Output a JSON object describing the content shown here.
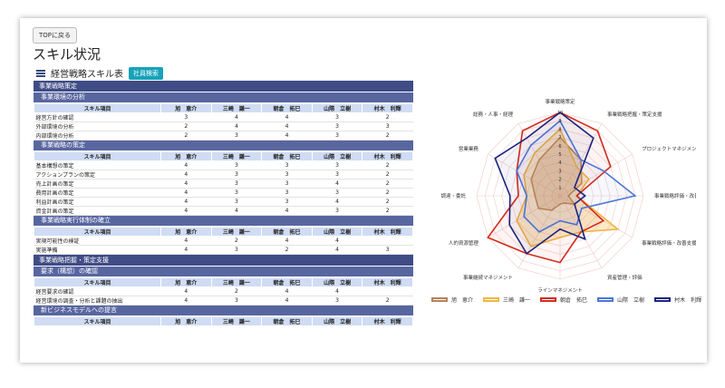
{
  "top_button": "TOPに戻る",
  "page_title": "スキル状況",
  "subtitle": "経営戦略スキル表",
  "search_badge": "社員検索",
  "members": [
    "旭　恵介",
    "三崎　謙一",
    "朝倉　拓巳",
    "山際　立樹",
    "村木　利輝"
  ],
  "skill_header": "スキル項目",
  "sections": [
    {
      "title": "事業戦略策定",
      "groups": [
        {
          "title": "事業環境の分析",
          "rows": [
            {
              "name": "経営方針の確認",
              "values": [
                "3",
                "4",
                "4",
                "3",
                "2"
              ]
            },
            {
              "name": "外部環境の分析",
              "values": [
                "2",
                "4",
                "4",
                "3",
                "3"
              ]
            },
            {
              "name": "内部環境の分析",
              "values": [
                "2",
                "3",
                "4",
                "3",
                "2"
              ]
            }
          ]
        },
        {
          "title": "事業戦略の策定",
          "rows": [
            {
              "name": "基本構想の策定",
              "values": [
                "4",
                "3",
                "3",
                "3",
                "2"
              ]
            },
            {
              "name": "アクションプランの策定",
              "values": [
                "4",
                "3",
                "3",
                "3",
                "2"
              ]
            },
            {
              "name": "売上計画の策定",
              "values": [
                "4",
                "3",
                "3",
                "4",
                "2"
              ]
            },
            {
              "name": "費用計画の策定",
              "values": [
                "4",
                "3",
                "3",
                "3",
                "2"
              ]
            },
            {
              "name": "利益計画の策定",
              "values": [
                "4",
                "3",
                "3",
                "4",
                "2"
              ]
            },
            {
              "name": "資金計画の策定",
              "values": [
                "4",
                "4",
                "4",
                "3",
                "2"
              ]
            }
          ]
        },
        {
          "title": "事業戦略実行体制の確立",
          "rows": [
            {
              "name": "実現可能性の検証",
              "values": [
                "4",
                "2",
                "4",
                "4",
                ""
              ]
            },
            {
              "name": "実施準備",
              "values": [
                "4",
                "3",
                "2",
                "4",
                "3"
              ]
            }
          ]
        }
      ]
    },
    {
      "title": "事業戦略把握・策定支援",
      "groups": [
        {
          "title": "要求（構想）の確認",
          "sub": true,
          "rows": [
            {
              "name": "経営要求の確認",
              "values": [
                "4",
                "2",
                "4",
                "4",
                ""
              ]
            },
            {
              "name": "経営環境の調査・分析と課題の抽出",
              "values": [
                "4",
                "3",
                "4",
                "3",
                "2"
              ]
            }
          ]
        },
        {
          "title": "新ビジネスモデルへの提言",
          "sub": true,
          "rows": []
        }
      ]
    }
  ],
  "chart_data": {
    "type": "radar",
    "axes": [
      "事業戦略策定",
      "事業戦略把握・策定支援",
      "プロジェクトマネジメント",
      "事業戦略評価・改善",
      "事業戦略評価・改善支援",
      "資産管理・評価",
      "ラインマネジメント",
      "事業継続マネジメント",
      "人的資源管理",
      "調達・委託",
      "営業業務",
      "総務・人事・経理"
    ],
    "ticks": [
      "1",
      "2",
      "3",
      "4",
      "5",
      "6",
      "7",
      "8",
      "9",
      "10"
    ],
    "max": 10,
    "series": [
      {
        "name": "旭　恵介",
        "color": "#b5835a",
        "values": [
          7,
          5,
          3,
          1,
          2,
          1,
          1,
          2,
          3,
          3,
          4,
          5
        ]
      },
      {
        "name": "三崎　謙一",
        "color": "#f0b540",
        "values": [
          8,
          4,
          4,
          2,
          8,
          5,
          5,
          7,
          6,
          4,
          5,
          6
        ]
      },
      {
        "name": "朝倉　拓巳",
        "color": "#d32a1c",
        "values": [
          10,
          9,
          7,
          2,
          6,
          5,
          8,
          8,
          10,
          5,
          6,
          9
        ]
      },
      {
        "name": "山際　立樹",
        "color": "#4a76d8",
        "values": [
          9,
          5,
          6,
          9,
          3,
          4,
          3,
          5,
          5,
          4,
          6,
          7
        ]
      },
      {
        "name": "村木　利輝",
        "color": "#1a237e",
        "values": [
          10,
          8,
          2,
          3,
          2,
          6,
          4,
          8,
          7,
          6,
          9,
          8
        ]
      }
    ]
  }
}
